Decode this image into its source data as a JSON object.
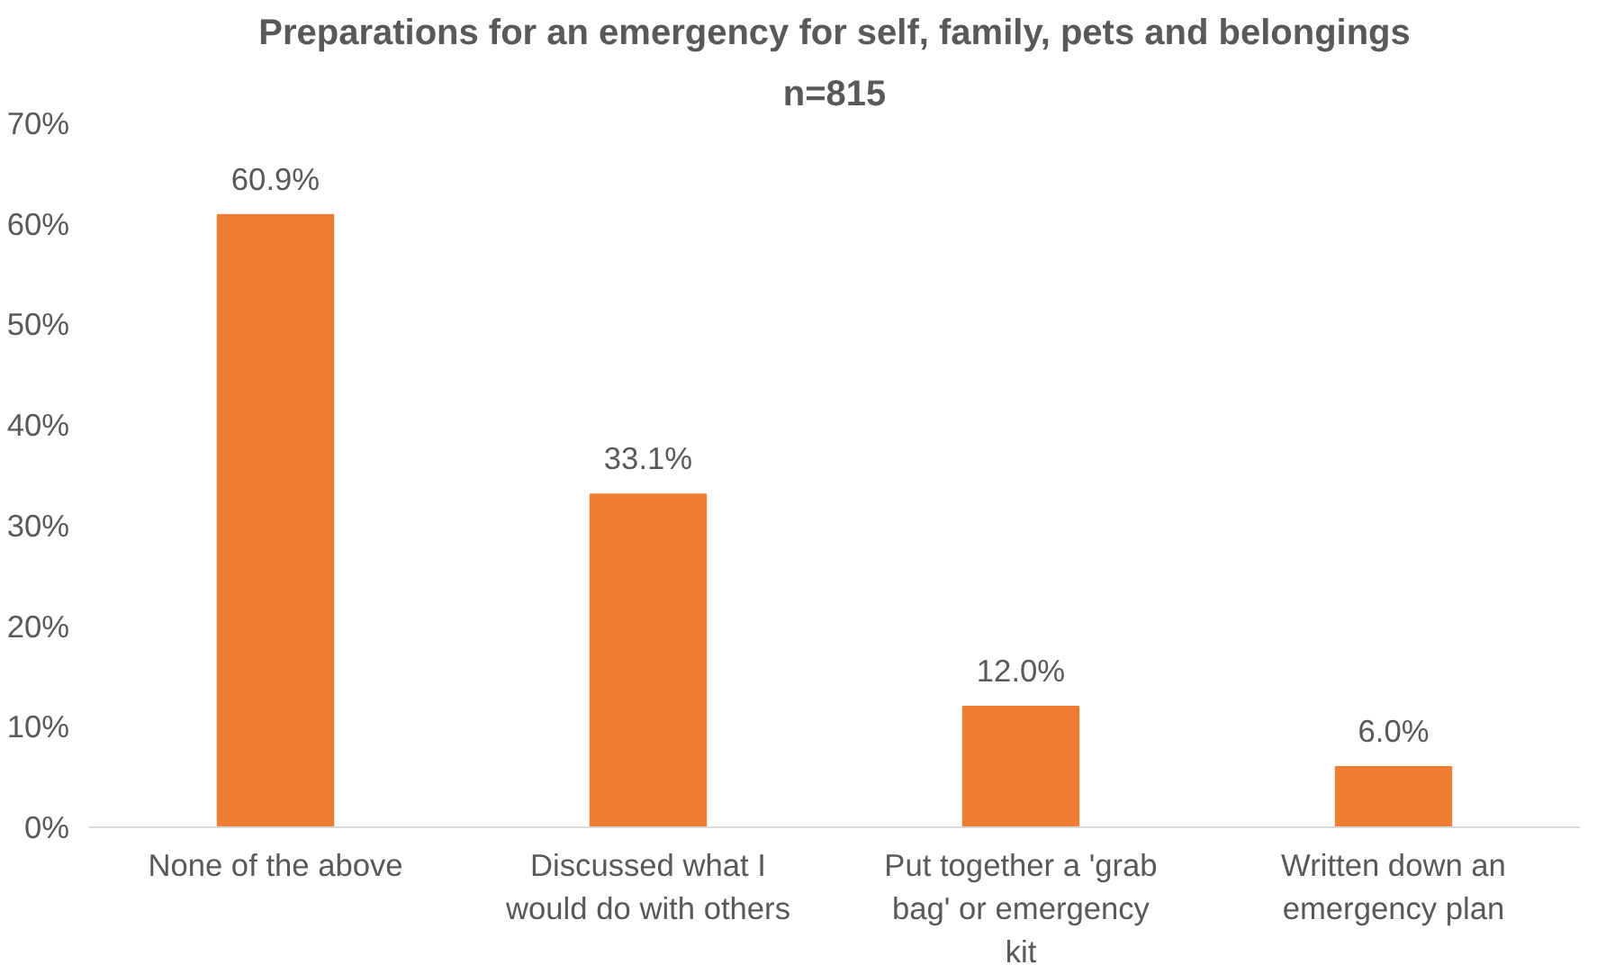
{
  "chart_data": {
    "type": "bar",
    "title": "Preparations for an emergency for self, family, pets and belongings",
    "subtitle": "n=815",
    "categories": [
      "None of the above",
      "Discussed what I would do with others",
      "Put together a 'grab bag' or emergency kit",
      "Written down an emergency plan"
    ],
    "values": [
      60.9,
      33.1,
      12.0,
      6.0
    ],
    "value_labels": [
      "60.9%",
      "33.1%",
      "12.0%",
      "6.0%"
    ],
    "color": "#ed7d31",
    "ylim": [
      0,
      70
    ],
    "yticks": [
      {
        "value": 0,
        "label": "0%"
      },
      {
        "value": 10,
        "label": "10%"
      },
      {
        "value": 20,
        "label": "20%"
      },
      {
        "value": 30,
        "label": "30%"
      },
      {
        "value": 40,
        "label": "40%"
      },
      {
        "value": 50,
        "label": "50%"
      },
      {
        "value": 60,
        "label": "60%"
      },
      {
        "value": 70,
        "label": "70%"
      }
    ],
    "grid": false
  }
}
